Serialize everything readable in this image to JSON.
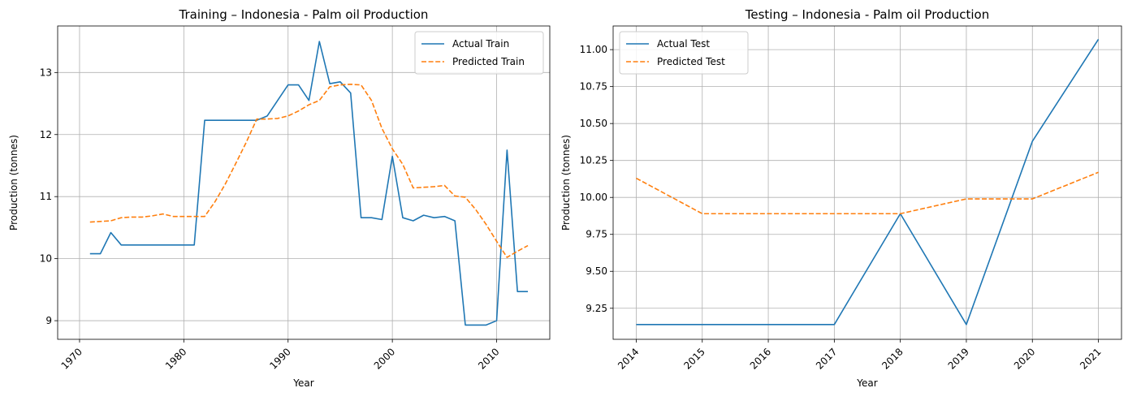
{
  "chart_data": [
    {
      "type": "line",
      "title": "Training – Indonesia - Palm oil Production",
      "xlabel": "Year",
      "ylabel": "Production (tonnes)",
      "xlim": [
        1967.9,
        2015.1
      ],
      "ylim": [
        8.7,
        13.75
      ],
      "xticks": [
        1970,
        1980,
        1990,
        2000,
        2010
      ],
      "xtick_labels": [
        "1970",
        "1980",
        "1990",
        "2000",
        "2010"
      ],
      "xtick_rotation": 45,
      "yticks": [
        9,
        10,
        11,
        12,
        13
      ],
      "ytick_labels": [
        "9",
        "10",
        "11",
        "12",
        "13"
      ],
      "grid": true,
      "legend_position": "top-right",
      "x": [
        1971,
        1972,
        1973,
        1974,
        1975,
        1976,
        1977,
        1978,
        1979,
        1980,
        1981,
        1982,
        1983,
        1984,
        1985,
        1986,
        1987,
        1988,
        1989,
        1990,
        1991,
        1992,
        1993,
        1994,
        1995,
        1996,
        1997,
        1998,
        1999,
        2000,
        2001,
        2002,
        2003,
        2004,
        2005,
        2006,
        2007,
        2008,
        2009,
        2010,
        2011,
        2012,
        2013
      ],
      "series": [
        {
          "name": "Actual Train",
          "color": "#1f77b4",
          "dash": "solid",
          "values": [
            10.08,
            10.08,
            10.42,
            10.22,
            10.22,
            10.22,
            10.22,
            10.22,
            10.22,
            10.22,
            10.22,
            12.23,
            12.23,
            12.23,
            12.23,
            12.23,
            12.23,
            12.3,
            12.55,
            12.8,
            12.8,
            12.55,
            13.5,
            12.82,
            12.85,
            12.67,
            10.66,
            10.66,
            10.63,
            11.65,
            10.66,
            10.61,
            10.7,
            10.66,
            10.68,
            10.61,
            8.93,
            8.93,
            8.93,
            9.0,
            11.75,
            9.47,
            9.47
          ]
        },
        {
          "name": "Predicted Train",
          "color": "#ff7f0e",
          "dash": "dashed",
          "values": [
            10.59,
            10.6,
            10.61,
            10.66,
            10.67,
            10.67,
            10.69,
            10.72,
            10.68,
            10.68,
            10.68,
            10.68,
            10.92,
            11.21,
            11.54,
            11.88,
            12.25,
            12.25,
            12.26,
            12.3,
            12.38,
            12.48,
            12.55,
            12.77,
            12.8,
            12.81,
            12.8,
            12.55,
            12.1,
            11.77,
            11.52,
            11.14,
            11.15,
            11.16,
            11.18,
            11.01,
            10.99,
            10.79,
            10.55,
            10.28,
            10.02,
            10.12,
            10.21
          ]
        }
      ]
    },
    {
      "type": "line",
      "title": "Testing – Indonesia - Palm oil Production",
      "xlabel": "Year",
      "ylabel": "Production (tonnes)",
      "xlim": [
        2013.65,
        2021.35
      ],
      "ylim": [
        9.04,
        11.16
      ],
      "xticks": [
        2014,
        2015,
        2016,
        2017,
        2018,
        2019,
        2020,
        2021
      ],
      "xtick_labels": [
        "2014",
        "2015",
        "2016",
        "2017",
        "2018",
        "2019",
        "2020",
        "2021"
      ],
      "xtick_rotation": 45,
      "yticks": [
        9.25,
        9.5,
        9.75,
        10.0,
        10.25,
        10.5,
        10.75,
        11.0
      ],
      "ytick_labels": [
        "9.25",
        "9.50",
        "9.75",
        "10.00",
        "10.25",
        "10.50",
        "10.75",
        "11.00"
      ],
      "grid": true,
      "legend_position": "top-left",
      "x": [
        2014,
        2015,
        2016,
        2017,
        2018,
        2019,
        2020,
        2021
      ],
      "series": [
        {
          "name": "Actual Test",
          "color": "#1f77b4",
          "dash": "solid",
          "values": [
            9.14,
            9.14,
            9.14,
            9.14,
            9.89,
            9.14,
            10.38,
            11.07
          ]
        },
        {
          "name": "Predicted Test",
          "color": "#ff7f0e",
          "dash": "dashed",
          "values": [
            10.13,
            9.89,
            9.89,
            9.89,
            9.89,
            9.99,
            9.99,
            10.17
          ]
        }
      ]
    }
  ]
}
